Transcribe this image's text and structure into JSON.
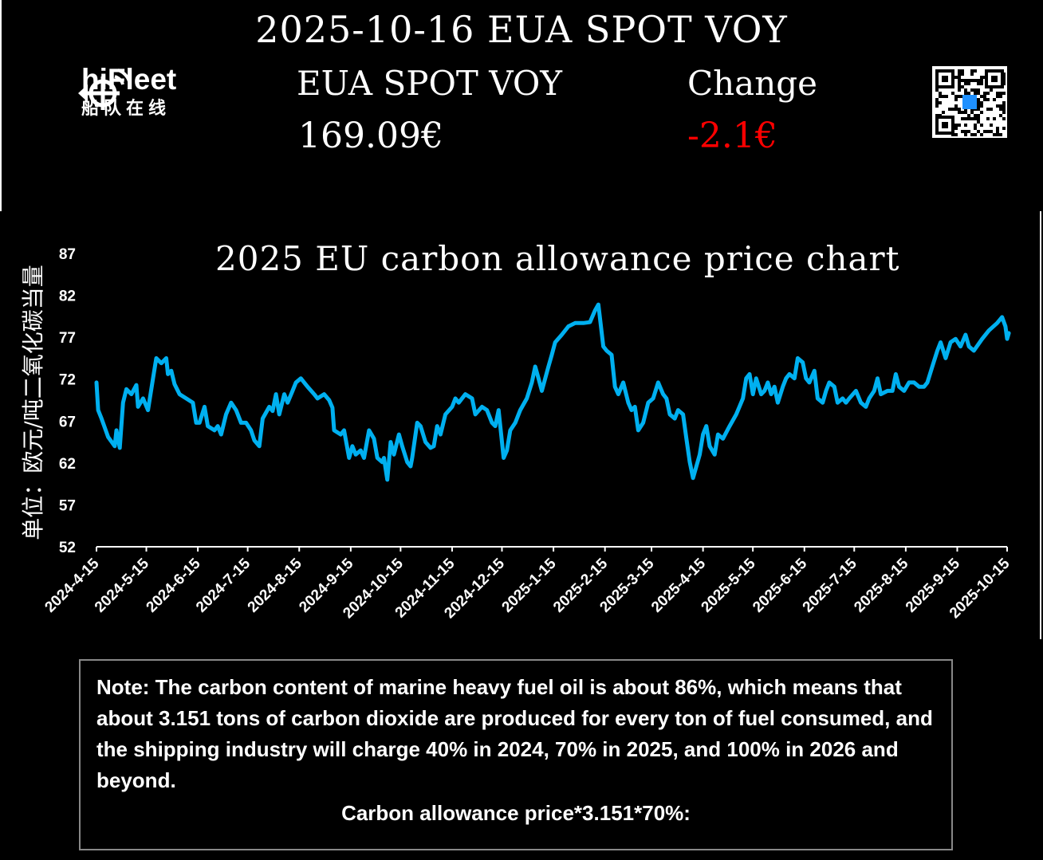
{
  "header": {
    "title": "2025-10-16 EUA SPOT VOY",
    "logo_text": "hiFleet",
    "logo_cn": "船队在线",
    "price_label": "EUA SPOT VOY",
    "change_label": "Change",
    "price_value": "169.09€",
    "change_value": "-2.1€",
    "change_color": "#ff0000"
  },
  "note": {
    "text": "Note: The carbon content of marine heavy fuel oil is about 86%, which means that about 3.151 tons of carbon dioxide are produced for every ton of fuel consumed, and the shipping industry will charge 40% in 2024, 70% in 2025, and 100% in 2026 and beyond.",
    "formula": "Carbon allowance price*3.151*70%:"
  },
  "chart_data": {
    "type": "line",
    "title": "2025 EU carbon allowance price chart",
    "ylabel": "单位：欧元/吨二氧化碳当量",
    "xlabel": "",
    "ylim": [
      52,
      87
    ],
    "yticks": [
      52,
      57,
      62,
      67,
      72,
      77,
      82,
      87
    ],
    "xlim": [
      "2024-04-15",
      "2025-10-15"
    ],
    "xticks": [
      "2024-4-15",
      "2024-5-15",
      "2024-6-15",
      "2024-7-15",
      "2024-8-15",
      "2024-9-15",
      "2024-10-15",
      "2024-11-15",
      "2024-12-15",
      "2025-1-15",
      "2025-2-15",
      "2025-3-15",
      "2025-4-15",
      "2025-5-15",
      "2025-6-15",
      "2025-7-15",
      "2025-8-15",
      "2025-9-15",
      "2025-10-15"
    ],
    "grid": false,
    "line_color": "#00b0f0",
    "series": [
      {
        "points": [
          [
            "2024-04-15",
            71.6
          ],
          [
            "2024-04-16",
            68.3
          ],
          [
            "2024-04-18",
            67.3
          ],
          [
            "2024-04-22",
            65.1
          ],
          [
            "2024-04-26",
            64.0
          ],
          [
            "2024-04-27",
            65.9
          ],
          [
            "2024-04-29",
            63.8
          ],
          [
            "2024-05-01",
            69.2
          ],
          [
            "2024-05-03",
            70.8
          ],
          [
            "2024-05-06",
            70.2
          ],
          [
            "2024-05-09",
            71.3
          ],
          [
            "2024-05-10",
            68.7
          ],
          [
            "2024-05-13",
            69.7
          ],
          [
            "2024-05-16",
            68.3
          ],
          [
            "2024-05-19",
            72.1
          ],
          [
            "2024-05-21",
            74.5
          ],
          [
            "2024-05-24",
            73.9
          ],
          [
            "2024-05-27",
            74.5
          ],
          [
            "2024-05-28",
            72.6
          ],
          [
            "2024-05-30",
            73.0
          ],
          [
            "2024-06-01",
            71.4
          ],
          [
            "2024-06-04",
            70.2
          ],
          [
            "2024-06-08",
            69.7
          ],
          [
            "2024-06-12",
            69.2
          ],
          [
            "2024-06-14",
            66.8
          ],
          [
            "2024-06-16",
            66.8
          ],
          [
            "2024-06-19",
            68.7
          ],
          [
            "2024-06-21",
            66.4
          ],
          [
            "2024-06-25",
            65.9
          ],
          [
            "2024-06-27",
            66.4
          ],
          [
            "2024-06-29",
            65.4
          ],
          [
            "2024-07-02",
            67.8
          ],
          [
            "2024-07-05",
            69.2
          ],
          [
            "2024-07-08",
            68.3
          ],
          [
            "2024-07-11",
            66.8
          ],
          [
            "2024-07-14",
            66.8
          ],
          [
            "2024-07-17",
            65.9
          ],
          [
            "2024-07-19",
            64.7
          ],
          [
            "2024-07-22",
            64.0
          ],
          [
            "2024-07-24",
            67.3
          ],
          [
            "2024-07-28",
            68.7
          ],
          [
            "2024-07-30",
            68.2
          ],
          [
            "2024-08-01",
            70.2
          ],
          [
            "2024-08-03",
            67.8
          ],
          [
            "2024-08-06",
            70.2
          ],
          [
            "2024-08-08",
            69.2
          ],
          [
            "2024-08-11",
            70.6
          ],
          [
            "2024-08-13",
            71.6
          ],
          [
            "2024-08-16",
            72.1
          ],
          [
            "2024-08-20",
            71.1
          ],
          [
            "2024-08-24",
            70.2
          ],
          [
            "2024-08-26",
            69.7
          ],
          [
            "2024-08-30",
            70.2
          ],
          [
            "2024-09-02",
            69.5
          ],
          [
            "2024-09-04",
            68.6
          ],
          [
            "2024-09-05",
            65.9
          ],
          [
            "2024-09-09",
            65.4
          ],
          [
            "2024-09-11",
            65.9
          ],
          [
            "2024-09-14",
            62.6
          ],
          [
            "2024-09-16",
            64.0
          ],
          [
            "2024-09-18",
            63.0
          ],
          [
            "2024-09-21",
            63.5
          ],
          [
            "2024-09-23",
            62.6
          ],
          [
            "2024-09-26",
            65.9
          ],
          [
            "2024-09-29",
            64.9
          ],
          [
            "2024-10-01",
            62.6
          ],
          [
            "2024-10-04",
            62.1
          ],
          [
            "2024-10-05",
            62.6
          ],
          [
            "2024-10-07",
            60.0
          ],
          [
            "2024-10-09",
            64.5
          ],
          [
            "2024-10-11",
            63.0
          ],
          [
            "2024-10-14",
            65.4
          ],
          [
            "2024-10-16",
            64.0
          ],
          [
            "2024-10-19",
            62.1
          ],
          [
            "2024-10-21",
            61.6
          ],
          [
            "2024-10-22",
            62.6
          ],
          [
            "2024-10-25",
            66.8
          ],
          [
            "2024-10-27",
            66.4
          ],
          [
            "2024-10-30",
            64.5
          ],
          [
            "2024-11-02",
            63.8
          ],
          [
            "2024-11-04",
            64.0
          ],
          [
            "2024-11-06",
            66.4
          ],
          [
            "2024-11-08",
            65.4
          ],
          [
            "2024-11-11",
            67.8
          ],
          [
            "2024-11-15",
            68.7
          ],
          [
            "2024-11-17",
            69.7
          ],
          [
            "2024-11-19",
            69.2
          ],
          [
            "2024-11-23",
            70.2
          ],
          [
            "2024-11-27",
            69.7
          ],
          [
            "2024-11-29",
            67.8
          ],
          [
            "2024-12-03",
            68.7
          ],
          [
            "2024-12-06",
            68.3
          ],
          [
            "2024-12-09",
            66.8
          ],
          [
            "2024-12-11",
            66.4
          ],
          [
            "2024-12-13",
            68.3
          ],
          [
            "2024-12-16",
            62.6
          ],
          [
            "2024-12-18",
            63.5
          ],
          [
            "2024-12-20",
            65.9
          ],
          [
            "2024-12-23",
            66.8
          ],
          [
            "2024-12-26",
            68.3
          ],
          [
            "2024-12-30",
            69.7
          ],
          [
            "2025-01-02",
            71.6
          ],
          [
            "2025-01-04",
            73.5
          ],
          [
            "2025-01-06",
            72.1
          ],
          [
            "2025-01-08",
            70.6
          ],
          [
            "2025-01-12",
            73.5
          ],
          [
            "2025-01-14",
            74.9
          ],
          [
            "2025-01-16",
            76.4
          ],
          [
            "2025-01-20",
            77.3
          ],
          [
            "2025-01-24",
            78.3
          ],
          [
            "2025-01-28",
            78.7
          ],
          [
            "2025-02-02",
            78.7
          ],
          [
            "2025-02-06",
            78.8
          ],
          [
            "2025-02-09",
            80.2
          ],
          [
            "2025-02-11",
            80.9
          ],
          [
            "2025-02-14",
            75.9
          ],
          [
            "2025-02-16",
            75.4
          ],
          [
            "2025-02-19",
            74.9
          ],
          [
            "2025-02-21",
            71.1
          ],
          [
            "2025-02-23",
            70.2
          ],
          [
            "2025-02-26",
            71.6
          ],
          [
            "2025-03-01",
            69.2
          ],
          [
            "2025-03-03",
            68.3
          ],
          [
            "2025-03-05",
            68.7
          ],
          [
            "2025-03-07",
            65.9
          ],
          [
            "2025-03-10",
            66.8
          ],
          [
            "2025-03-13",
            69.2
          ],
          [
            "2025-03-16",
            69.7
          ],
          [
            "2025-03-19",
            71.6
          ],
          [
            "2025-03-22",
            70.2
          ],
          [
            "2025-03-24",
            69.7
          ],
          [
            "2025-03-26",
            67.8
          ],
          [
            "2025-03-29",
            67.3
          ],
          [
            "2025-03-31",
            68.3
          ],
          [
            "2025-04-03",
            67.8
          ],
          [
            "2025-04-05",
            64.9
          ],
          [
            "2025-04-07",
            62.1
          ],
          [
            "2025-04-09",
            60.2
          ],
          [
            "2025-04-13",
            63.0
          ],
          [
            "2025-04-15",
            65.4
          ],
          [
            "2025-04-17",
            66.4
          ],
          [
            "2025-04-19",
            64.0
          ],
          [
            "2025-04-22",
            63.0
          ],
          [
            "2025-04-24",
            65.4
          ],
          [
            "2025-04-27",
            64.9
          ],
          [
            "2025-05-01",
            66.4
          ],
          [
            "2025-05-05",
            67.8
          ],
          [
            "2025-05-09",
            69.7
          ],
          [
            "2025-05-11",
            72.1
          ],
          [
            "2025-05-13",
            72.6
          ],
          [
            "2025-05-15",
            70.2
          ],
          [
            "2025-05-17",
            72.1
          ],
          [
            "2025-05-20",
            70.2
          ],
          [
            "2025-05-22",
            70.6
          ],
          [
            "2025-05-24",
            71.6
          ],
          [
            "2025-05-26",
            70.2
          ],
          [
            "2025-05-28",
            71.1
          ],
          [
            "2025-05-30",
            69.2
          ],
          [
            "2025-06-02",
            71.1
          ],
          [
            "2025-06-04",
            72.1
          ],
          [
            "2025-06-06",
            72.6
          ],
          [
            "2025-06-09",
            72.1
          ],
          [
            "2025-06-11",
            74.5
          ],
          [
            "2025-06-14",
            74.0
          ],
          [
            "2025-06-16",
            72.1
          ],
          [
            "2025-06-18",
            71.6
          ],
          [
            "2025-06-21",
            73.0
          ],
          [
            "2025-06-23",
            69.7
          ],
          [
            "2025-06-26",
            69.2
          ],
          [
            "2025-06-28",
            70.6
          ],
          [
            "2025-06-30",
            71.6
          ],
          [
            "2025-07-03",
            71.1
          ],
          [
            "2025-07-05",
            69.2
          ],
          [
            "2025-07-08",
            69.7
          ],
          [
            "2025-07-10",
            69.2
          ],
          [
            "2025-07-12",
            69.7
          ],
          [
            "2025-07-16",
            70.6
          ],
          [
            "2025-07-19",
            69.2
          ],
          [
            "2025-07-22",
            68.7
          ],
          [
            "2025-07-24",
            69.7
          ],
          [
            "2025-07-27",
            70.6
          ],
          [
            "2025-07-29",
            72.1
          ],
          [
            "2025-07-31",
            70.2
          ],
          [
            "2025-08-04",
            70.6
          ],
          [
            "2025-08-07",
            70.6
          ],
          [
            "2025-08-09",
            72.6
          ],
          [
            "2025-08-11",
            71.1
          ],
          [
            "2025-08-14",
            70.6
          ],
          [
            "2025-08-17",
            71.6
          ],
          [
            "2025-08-20",
            71.6
          ],
          [
            "2025-08-23",
            71.1
          ],
          [
            "2025-08-26",
            71.1
          ],
          [
            "2025-08-28",
            71.6
          ],
          [
            "2025-08-31",
            73.5
          ],
          [
            "2025-09-03",
            75.4
          ],
          [
            "2025-09-05",
            76.4
          ],
          [
            "2025-09-08",
            74.5
          ],
          [
            "2025-09-11",
            76.4
          ],
          [
            "2025-09-14",
            76.8
          ],
          [
            "2025-09-17",
            75.9
          ],
          [
            "2025-09-20",
            77.3
          ],
          [
            "2025-09-22",
            75.9
          ],
          [
            "2025-09-25",
            75.4
          ],
          [
            "2025-09-30",
            76.8
          ],
          [
            "2025-10-04",
            77.8
          ],
          [
            "2025-10-09",
            78.7
          ],
          [
            "2025-10-12",
            79.4
          ],
          [
            "2025-10-14",
            78.3
          ],
          [
            "2025-10-15",
            76.8
          ],
          [
            "2025-10-16",
            77.5
          ]
        ]
      }
    ]
  }
}
